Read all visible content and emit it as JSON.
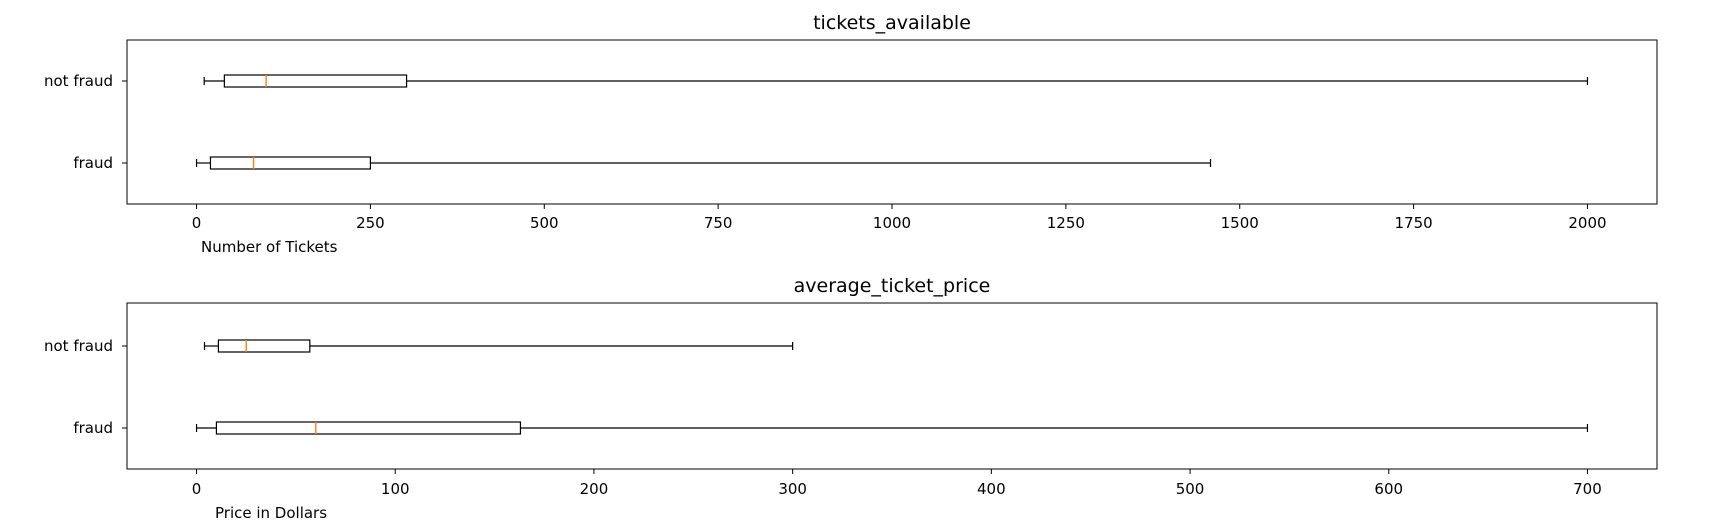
{
  "chart_data": [
    {
      "type": "boxplot",
      "orientation": "horizontal",
      "title": "tickets_available",
      "xlabel": "Number of Tickets",
      "ylabel": "",
      "xlim": [
        -100,
        2100
      ],
      "xticks": [
        0,
        250,
        500,
        750,
        1000,
        1250,
        1500,
        1750,
        2000
      ],
      "xtick_labels": [
        "0",
        "250",
        "500",
        "750",
        "1000",
        "1250",
        "1500",
        "1750",
        "2000"
      ],
      "categories": [
        "not fraud",
        "fraud"
      ],
      "boxes": [
        {
          "label": "not fraud",
          "whisker_low": 11,
          "q1": 40,
          "median": 100,
          "q3": 302,
          "whisker_high": 2000
        },
        {
          "label": "fraud",
          "whisker_low": 0,
          "q1": 20,
          "median": 82,
          "q3": 250,
          "whisker_high": 1458
        }
      ],
      "grid": false,
      "colors": {
        "box": "#000000",
        "median": "#ff7f0e"
      }
    },
    {
      "type": "boxplot",
      "orientation": "horizontal",
      "title": "average_ticket_price",
      "xlabel": "Price in Dollars",
      "ylabel": "",
      "xlim": [
        -35,
        735
      ],
      "xticks": [
        0,
        100,
        200,
        300,
        400,
        500,
        600,
        700
      ],
      "xtick_labels": [
        "0",
        "100",
        "200",
        "300",
        "400",
        "500",
        "600",
        "700"
      ],
      "categories": [
        "not fraud",
        "fraud"
      ],
      "boxes": [
        {
          "label": "not fraud",
          "whisker_low": 4,
          "q1": 11,
          "median": 25,
          "q3": 57,
          "whisker_high": 300
        },
        {
          "label": "fraud",
          "whisker_low": 0,
          "q1": 10,
          "median": 60,
          "q3": 163,
          "whisker_high": 700
        }
      ],
      "grid": false,
      "colors": {
        "box": "#000000",
        "median": "#ff7f0e"
      }
    }
  ]
}
